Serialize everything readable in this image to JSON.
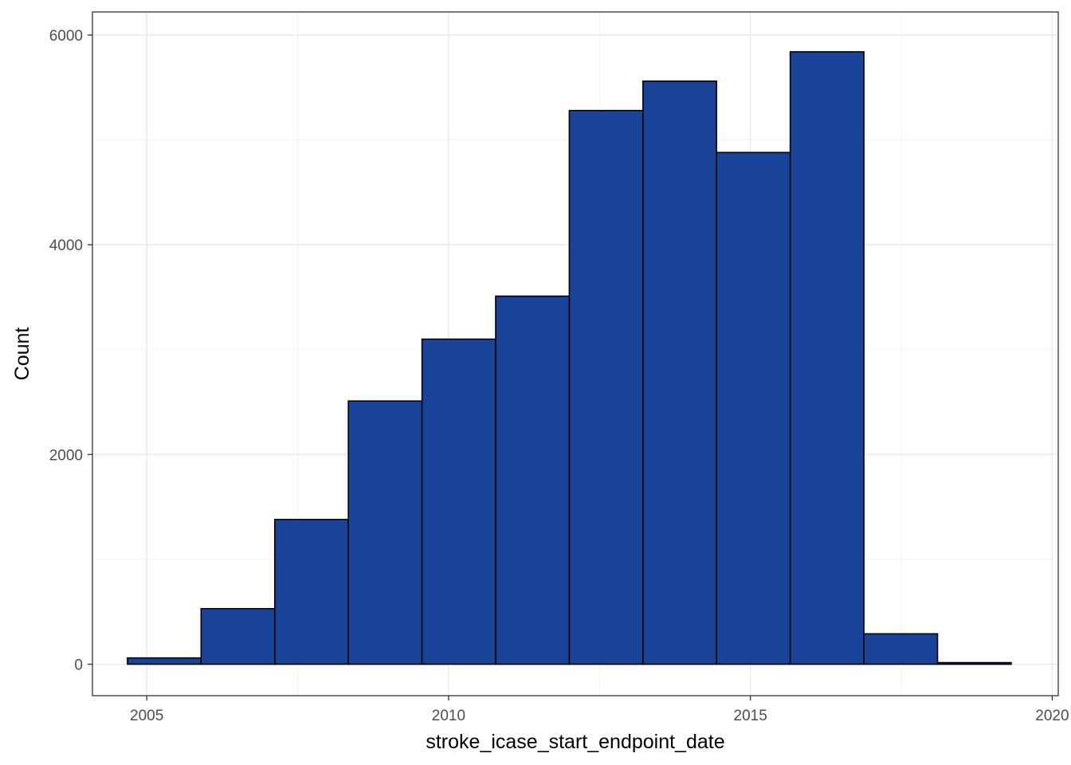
{
  "chart_data": {
    "type": "bar",
    "title": "",
    "xlabel": "stroke_icase_start_endpoint_date",
    "ylabel": "Count",
    "xlim": [
      2004.1,
      2020.1
    ],
    "ylim": [
      -300,
      6220
    ],
    "x_ticks": [
      2005,
      2010,
      2015,
      2020
    ],
    "x_tick_labels": [
      "2005",
      "2010",
      "2015",
      "2020"
    ],
    "y_ticks": [
      0,
      2000,
      4000,
      6000
    ],
    "y_tick_labels": [
      "0",
      "2000",
      "4000",
      "6000"
    ],
    "bin_width": 1.22,
    "bins": [
      {
        "x_start": 2004.68,
        "x_end": 2005.9,
        "count": 60
      },
      {
        "x_start": 2005.9,
        "x_end": 2007.12,
        "count": 530
      },
      {
        "x_start": 2007.12,
        "x_end": 2008.34,
        "count": 1380
      },
      {
        "x_start": 2008.34,
        "x_end": 2009.56,
        "count": 2510
      },
      {
        "x_start": 2009.56,
        "x_end": 2010.78,
        "count": 3100
      },
      {
        "x_start": 2010.78,
        "x_end": 2012.0,
        "count": 3510
      },
      {
        "x_start": 2012.0,
        "x_end": 2013.22,
        "count": 5280
      },
      {
        "x_start": 2013.22,
        "x_end": 2014.44,
        "count": 5560
      },
      {
        "x_start": 2014.44,
        "x_end": 2015.66,
        "count": 4880
      },
      {
        "x_start": 2015.66,
        "x_end": 2016.88,
        "count": 5840
      },
      {
        "x_start": 2016.88,
        "x_end": 2018.1,
        "count": 290
      },
      {
        "x_start": 2018.1,
        "x_end": 2019.32,
        "count": 15
      }
    ],
    "grid": true,
    "legend": "none",
    "colors": {
      "bar_fill": "#1a4499",
      "bar_stroke": "#000000",
      "grid_major": "#ebebeb",
      "grid_minor": "#f3f3f3",
      "panel_border": "#333333"
    }
  }
}
